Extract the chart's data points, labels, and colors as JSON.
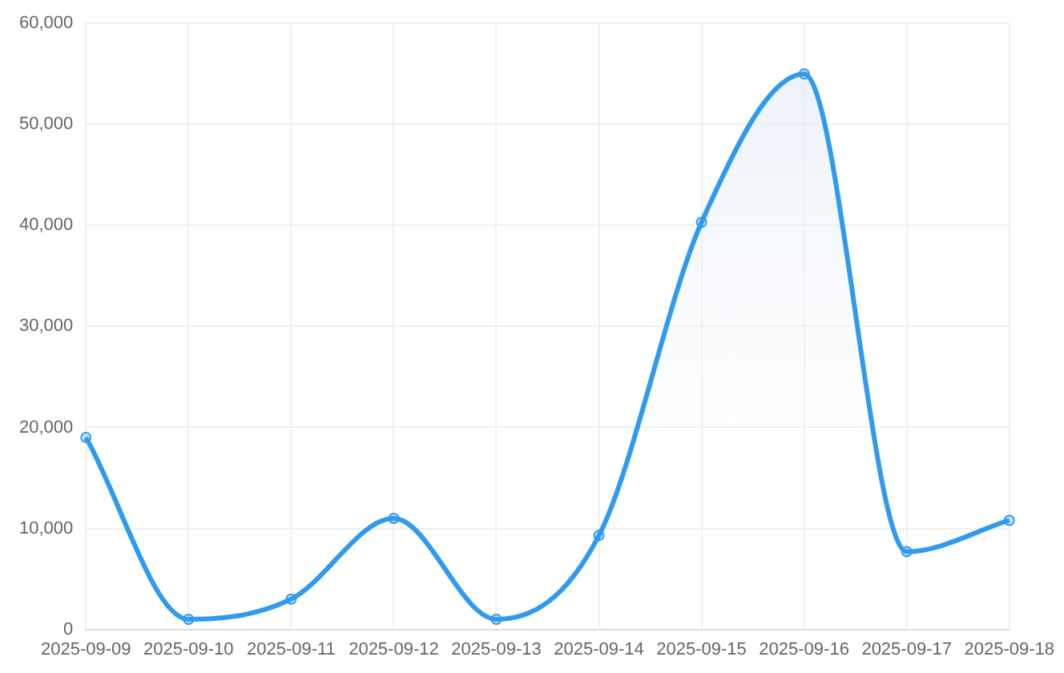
{
  "chart_data": {
    "type": "area",
    "categories": [
      "2025-09-09",
      "2025-09-10",
      "2025-09-11",
      "2025-09-12",
      "2025-09-13",
      "2025-09-14",
      "2025-09-15",
      "2025-09-16",
      "2025-09-17",
      "2025-09-18"
    ],
    "series": [
      {
        "color": "#2f9bf0",
        "values": [
          19000,
          1000,
          3000,
          11000,
          1000,
          9300,
          40300,
          55000,
          7700,
          10800
        ]
      }
    ],
    "ylim": [
      0,
      60000
    ],
    "yticks": [
      0,
      {
        "value": 10000,
        "label": "10,000"
      },
      {
        "value": 20000,
        "label": "20,000"
      },
      {
        "value": 30000,
        "label": "30,000"
      },
      {
        "value": 40000,
        "label": "40,000"
      },
      {
        "value": 50000,
        "label": "50,000"
      },
      {
        "value": 60000,
        "label": "60,000"
      }
    ],
    "grid": true,
    "legend": false,
    "marker": "circle",
    "line_style": "solid"
  }
}
